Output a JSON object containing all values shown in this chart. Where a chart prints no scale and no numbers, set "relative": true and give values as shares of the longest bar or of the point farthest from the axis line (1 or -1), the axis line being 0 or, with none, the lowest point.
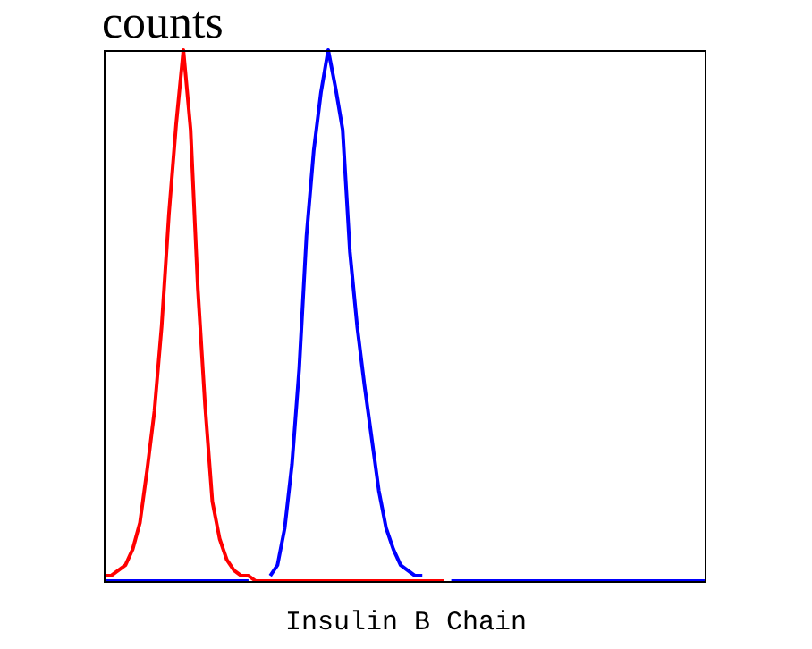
{
  "chart_data": {
    "type": "line",
    "ylabel": "counts",
    "xlabel": "Insulin B Chain",
    "relative": true,
    "categories": [
      null,
      null,
      null,
      null,
      null,
      null,
      null,
      null,
      null,
      null,
      null,
      null,
      null,
      null,
      null,
      null,
      null,
      null,
      null,
      null,
      null,
      null,
      null,
      null,
      null,
      null,
      null,
      null,
      null,
      null,
      null,
      null,
      null,
      null,
      null,
      null,
      null,
      null,
      null,
      null,
      null,
      null,
      null,
      null,
      null,
      null,
      null,
      null,
      null,
      null,
      null,
      null,
      null,
      null,
      null,
      null,
      null,
      null,
      null,
      null,
      null,
      null,
      null,
      null,
      null,
      null,
      null,
      null,
      null,
      null,
      null,
      null,
      null,
      null,
      null,
      null,
      null,
      null,
      null,
      null,
      null,
      null,
      null,
      null
    ],
    "series": [
      {
        "color": "#ff0000",
        "values": [
          0.01,
          0.01,
          0.02,
          0.03,
          0.06,
          0.11,
          0.21,
          0.32,
          0.48,
          0.69,
          0.86,
          1,
          0.85,
          0.55,
          0.33,
          0.15,
          0.08,
          0.04,
          0.02,
          0.01,
          0.01,
          0,
          0,
          0,
          0,
          0,
          0,
          0,
          0,
          0,
          0,
          0,
          0,
          0,
          0,
          0,
          0,
          0,
          0,
          0,
          0,
          0,
          0,
          0,
          0,
          0,
          0,
          0,
          null,
          null,
          null,
          null,
          null,
          null,
          null,
          null,
          null,
          null,
          null,
          null,
          null,
          null,
          null,
          null,
          null,
          null,
          null,
          null,
          null,
          null,
          null,
          null,
          null,
          null,
          null,
          null,
          null,
          null,
          null,
          null,
          null,
          null,
          null,
          null
        ]
      },
      {
        "color": "#0000ff",
        "values": [
          0,
          0,
          0,
          0,
          0,
          0,
          0,
          0,
          0,
          0,
          0,
          0,
          0,
          0,
          0,
          0,
          0,
          0,
          0,
          0,
          0,
          null,
          null,
          0.01,
          0.03,
          0.1,
          0.22,
          0.4,
          0.65,
          0.81,
          0.92,
          1,
          0.93,
          0.85,
          0.62,
          0.48,
          0.37,
          0.27,
          0.17,
          0.1,
          0.06,
          0.03,
          0.02,
          0.01,
          0.01,
          null,
          null,
          null,
          0,
          0,
          0,
          0,
          0,
          0,
          0,
          0,
          0,
          0,
          0,
          0,
          0,
          0,
          0,
          0,
          0,
          0,
          0,
          0,
          0,
          0,
          0,
          0,
          0,
          0,
          0,
          0,
          0,
          0,
          0,
          0,
          0,
          0,
          0,
          0
        ]
      }
    ]
  }
}
